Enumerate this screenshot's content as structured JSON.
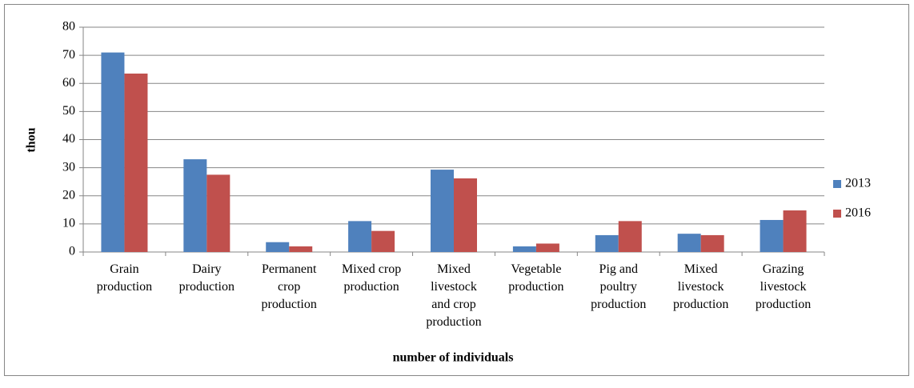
{
  "chart_data": {
    "type": "bar",
    "ylabel": "thou",
    "xlabel": "number  of individuals",
    "categories": [
      "Grain\nproduction",
      "Dairy\nproduction",
      "Permanent\ncrop\nproduction",
      "Mixed crop\nproduction",
      "Mixed\nlivestock\nand crop\nproduction",
      "Vegetable\nproduction",
      "Pig and\npoultry\nproduction",
      "Mixed\nlivestock\nproduction",
      "Grazing\nlivestock\nproduction"
    ],
    "series": [
      {
        "name": "2013",
        "color": "#4f81bd",
        "values": [
          71,
          33,
          3.5,
          11,
          29.3,
          2,
          6,
          6.5,
          11.4
        ]
      },
      {
        "name": "2016",
        "color": "#c0504d",
        "values": [
          63.5,
          27.5,
          2,
          7.5,
          26.2,
          3,
          11,
          6,
          14.8
        ]
      }
    ],
    "ylim": [
      0,
      80
    ],
    "yticks": [
      0,
      10,
      20,
      30,
      40,
      50,
      60,
      70,
      80
    ],
    "grid": true,
    "legend": "right"
  }
}
